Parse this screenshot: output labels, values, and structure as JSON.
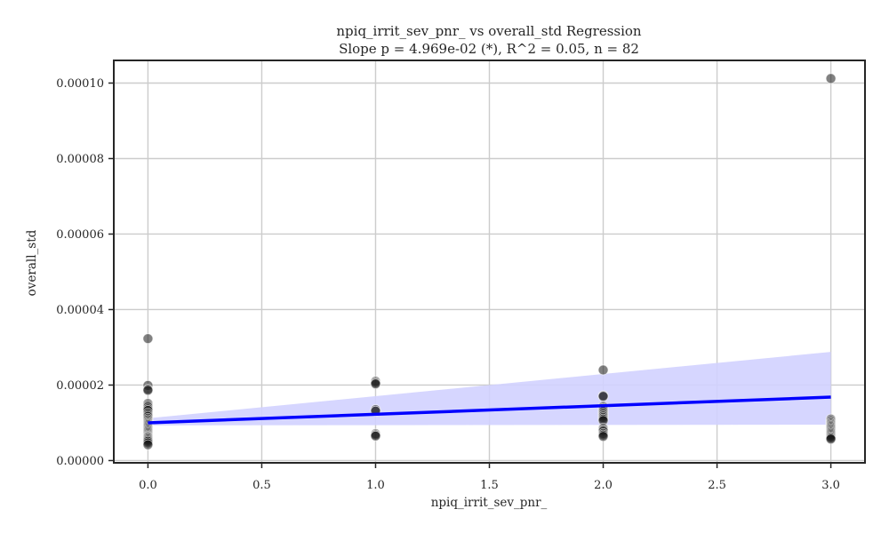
{
  "chart_data": {
    "type": "scatter",
    "title_line1": "npiq_irrit_sev_pnr_ vs overall_std Regression",
    "title_line2": "Slope p = 4.969e-02 (*), R^2 = 0.05, n = 82",
    "xlabel": "npiq_irrit_sev_pnr_",
    "ylabel": "overall_std",
    "xlim": [
      -0.15,
      3.15
    ],
    "ylim": [
      -6e-07,
      0.000106
    ],
    "xticks": [
      0.0,
      0.5,
      1.0,
      1.5,
      2.0,
      2.5,
      3.0
    ],
    "xtick_labels": [
      "0.0",
      "0.5",
      "1.0",
      "1.5",
      "2.0",
      "2.5",
      "3.0"
    ],
    "yticks": [
      0.0,
      2e-05,
      4e-05,
      6e-05,
      8e-05,
      0.0001
    ],
    "ytick_labels": [
      "0.00000",
      "0.00002",
      "0.00004",
      "0.00006",
      "0.00008",
      "0.00010"
    ],
    "grid": true,
    "points": [
      {
        "x": 0,
        "y": 3.23e-05
      },
      {
        "x": 0,
        "y": 1.99e-05
      },
      {
        "x": 0,
        "y": 1.89e-05
      },
      {
        "x": 0,
        "y": 1.86e-05
      },
      {
        "x": 0,
        "y": 1.51e-05
      },
      {
        "x": 0,
        "y": 1.46e-05
      },
      {
        "x": 0,
        "y": 1.42e-05
      },
      {
        "x": 0,
        "y": 1.37e-05
      },
      {
        "x": 0,
        "y": 1.33e-05
      },
      {
        "x": 0,
        "y": 1.26e-05
      },
      {
        "x": 0,
        "y": 1.21e-05
      },
      {
        "x": 0,
        "y": 1.17e-05
      },
      {
        "x": 0,
        "y": 1.12e-05
      },
      {
        "x": 0,
        "y": 1.08e-05
      },
      {
        "x": 0,
        "y": 1.04e-05
      },
      {
        "x": 0,
        "y": 1.01e-05
      },
      {
        "x": 0,
        "y": 9.8e-06
      },
      {
        "x": 0,
        "y": 9.5e-06
      },
      {
        "x": 0,
        "y": 9.2e-06
      },
      {
        "x": 0,
        "y": 8.9e-06
      },
      {
        "x": 0,
        "y": 8.6e-06
      },
      {
        "x": 0,
        "y": 8.3e-06
      },
      {
        "x": 0,
        "y": 8e-06
      },
      {
        "x": 0,
        "y": 7.7e-06
      },
      {
        "x": 0,
        "y": 7.4e-06
      },
      {
        "x": 0,
        "y": 7.1e-06
      },
      {
        "x": 0,
        "y": 6.8e-06
      },
      {
        "x": 0,
        "y": 6.5e-06
      },
      {
        "x": 0,
        "y": 6.3e-06
      },
      {
        "x": 0,
        "y": 6e-06
      },
      {
        "x": 0,
        "y": 5.7e-06
      },
      {
        "x": 0,
        "y": 5.4e-06
      },
      {
        "x": 0,
        "y": 5.1e-06
      },
      {
        "x": 0,
        "y": 4.7e-06
      },
      {
        "x": 0,
        "y": 4.2e-06
      },
      {
        "x": 1,
        "y": 2.1e-05
      },
      {
        "x": 1,
        "y": 2.06e-05
      },
      {
        "x": 1,
        "y": 2.03e-05
      },
      {
        "x": 1,
        "y": 1.35e-05
      },
      {
        "x": 1,
        "y": 1.31e-05
      },
      {
        "x": 1,
        "y": 7.1e-06
      },
      {
        "x": 1,
        "y": 6.8e-06
      },
      {
        "x": 1,
        "y": 6.5e-06
      },
      {
        "x": 2,
        "y": 2.4e-05
      },
      {
        "x": 2,
        "y": 1.72e-05
      },
      {
        "x": 2,
        "y": 1.7e-05
      },
      {
        "x": 2,
        "y": 1.44e-05
      },
      {
        "x": 2,
        "y": 1.41e-05
      },
      {
        "x": 2,
        "y": 1.38e-05
      },
      {
        "x": 2,
        "y": 1.34e-05
      },
      {
        "x": 2,
        "y": 1.3e-05
      },
      {
        "x": 2,
        "y": 1.26e-05
      },
      {
        "x": 2,
        "y": 1.22e-05
      },
      {
        "x": 2,
        "y": 1.18e-05
      },
      {
        "x": 2,
        "y": 1.14e-05
      },
      {
        "x": 2,
        "y": 1.1e-05
      },
      {
        "x": 2,
        "y": 1.06e-05
      },
      {
        "x": 2,
        "y": 8.6e-06
      },
      {
        "x": 2,
        "y": 8.2e-06
      },
      {
        "x": 2,
        "y": 7.8e-06
      },
      {
        "x": 2,
        "y": 7.2e-06
      },
      {
        "x": 2,
        "y": 6.8e-06
      },
      {
        "x": 2,
        "y": 6.4e-06
      },
      {
        "x": 3,
        "y": 0.0001012
      },
      {
        "x": 3,
        "y": 1.1e-05
      },
      {
        "x": 3,
        "y": 1.06e-05
      },
      {
        "x": 3,
        "y": 1.02e-05
      },
      {
        "x": 3,
        "y": 9.9e-06
      },
      {
        "x": 3,
        "y": 9.6e-06
      },
      {
        "x": 3,
        "y": 9.3e-06
      },
      {
        "x": 3,
        "y": 9e-06
      },
      {
        "x": 3,
        "y": 8.7e-06
      },
      {
        "x": 3,
        "y": 8.4e-06
      },
      {
        "x": 3,
        "y": 8.1e-06
      },
      {
        "x": 3,
        "y": 7.8e-06
      },
      {
        "x": 3,
        "y": 7.5e-06
      },
      {
        "x": 3,
        "y": 7.2e-06
      },
      {
        "x": 3,
        "y": 6.9e-06
      },
      {
        "x": 3,
        "y": 6.6e-06
      },
      {
        "x": 3,
        "y": 6.3e-06
      },
      {
        "x": 3,
        "y": 6e-06
      },
      {
        "x": 3,
        "y": 5.7e-06
      }
    ],
    "regression": {
      "x": [
        0,
        3
      ],
      "y": [
        1e-05,
        1.68e-05
      ],
      "ci_upper": [
        1.12e-05,
        2.88e-05
      ],
      "ci_lower": [
        9.3e-06,
        9.5e-06
      ]
    },
    "colors": {
      "point": "#1a1a1a",
      "line": "#0000ff",
      "band": "#d2d2ff",
      "grid": "#cccccc",
      "axes": "#262626"
    }
  }
}
